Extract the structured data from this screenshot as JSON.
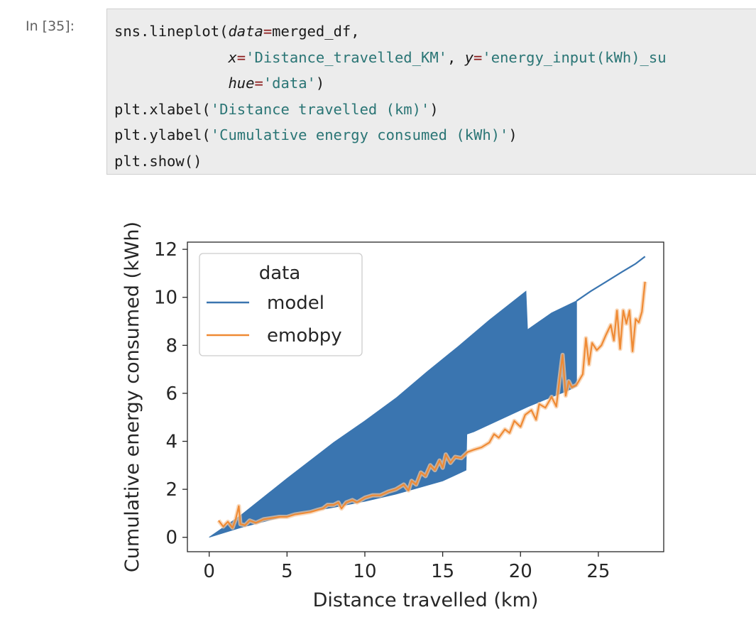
{
  "cell": {
    "prompt": "In [35]:",
    "code_lines": [
      [
        {
          "t": "sns.lineplot(",
          "c": "p"
        },
        {
          "t": "data",
          "c": "kw"
        },
        {
          "t": "=",
          "c": "op"
        },
        {
          "t": "merged_df,",
          "c": "p"
        }
      ],
      [
        {
          "t": "             ",
          "c": "p"
        },
        {
          "t": "x",
          "c": "kw"
        },
        {
          "t": "=",
          "c": "op"
        },
        {
          "t": "'Distance_travelled_KM'",
          "c": "str"
        },
        {
          "t": ", ",
          "c": "p"
        },
        {
          "t": "y",
          "c": "kw"
        },
        {
          "t": "=",
          "c": "op"
        },
        {
          "t": "'energy_input(kWh)_su",
          "c": "str"
        }
      ],
      [
        {
          "t": "             ",
          "c": "p"
        },
        {
          "t": "hue",
          "c": "kw"
        },
        {
          "t": "=",
          "c": "op"
        },
        {
          "t": "'data'",
          "c": "str"
        },
        {
          "t": ")",
          "c": "p"
        }
      ],
      [
        {
          "t": "plt.xlabel(",
          "c": "p"
        },
        {
          "t": "'Distance travelled (km)'",
          "c": "str"
        },
        {
          "t": ")",
          "c": "p"
        }
      ],
      [
        {
          "t": "plt.ylabel(",
          "c": "p"
        },
        {
          "t": "'Cumulative energy consumed (kWh)'",
          "c": "str"
        },
        {
          "t": ")",
          "c": "p"
        }
      ],
      [
        {
          "t": "plt.show()",
          "c": "p"
        }
      ]
    ]
  },
  "chart_data": {
    "type": "line",
    "title": "",
    "xlabel": "Distance travelled (km)",
    "ylabel": "Cumulative energy consumed (kWh)",
    "xlim": [
      -1.4,
      29.2
    ],
    "ylim": [
      -0.6,
      12.3
    ],
    "xticks": [
      0,
      5,
      10,
      15,
      20,
      25
    ],
    "yticks": [
      0,
      2,
      4,
      6,
      8,
      10,
      12
    ],
    "legend": {
      "title": "data",
      "position": "top-left"
    },
    "grid": false,
    "series": [
      {
        "name": "model",
        "color": "#3a75b0",
        "band": {
          "upper": [
            [
              0,
              0.0
            ],
            [
              2,
              0.9
            ],
            [
              5,
              2.45
            ],
            [
              8,
              3.95
            ],
            [
              10,
              4.85
            ],
            [
              12,
              5.8
            ],
            [
              14,
              6.9
            ],
            [
              16,
              7.95
            ],
            [
              18,
              9.05
            ],
            [
              20.35,
              10.25
            ],
            [
              20.45,
              8.65
            ],
            [
              22,
              9.35
            ],
            [
              23.6,
              9.85
            ]
          ],
          "lower": [
            [
              23.6,
              6.3
            ],
            [
              23,
              6.1
            ],
            [
              22,
              5.85
            ],
            [
              20.5,
              5.45
            ],
            [
              18.5,
              4.85
            ],
            [
              17,
              4.4
            ],
            [
              16.55,
              4.3
            ],
            [
              16.5,
              2.8
            ],
            [
              15,
              2.35
            ],
            [
              12,
              1.8
            ],
            [
              10,
              1.5
            ],
            [
              8,
              1.25
            ],
            [
              5,
              0.9
            ],
            [
              2,
              0.4
            ],
            [
              0,
              0.0
            ]
          ]
        },
        "line": [
          [
            23.6,
            9.85
          ],
          [
            24.5,
            10.25
          ],
          [
            25.5,
            10.65
          ],
          [
            26.5,
            11.05
          ],
          [
            27.4,
            11.4
          ],
          [
            28.0,
            11.7
          ]
        ]
      },
      {
        "name": "emobpy",
        "color": "#ef8a34",
        "values": [
          [
            0.6,
            0.7
          ],
          [
            0.9,
            0.45
          ],
          [
            1.2,
            0.65
          ],
          [
            1.5,
            0.4
          ],
          [
            1.7,
            0.75
          ],
          [
            1.9,
            1.3
          ],
          [
            2.0,
            0.55
          ],
          [
            2.3,
            0.5
          ],
          [
            2.6,
            0.7
          ],
          [
            3.0,
            0.6
          ],
          [
            3.5,
            0.75
          ],
          [
            4,
            0.8
          ],
          [
            4.5,
            0.85
          ],
          [
            5,
            0.85
          ],
          [
            5.5,
            0.95
          ],
          [
            6,
            1.0
          ],
          [
            6.5,
            1.05
          ],
          [
            7,
            1.15
          ],
          [
            7.3,
            1.2
          ],
          [
            7.6,
            1.35
          ],
          [
            8,
            1.35
          ],
          [
            8.3,
            1.45
          ],
          [
            8.5,
            1.2
          ],
          [
            8.8,
            1.45
          ],
          [
            9.2,
            1.55
          ],
          [
            9.5,
            1.45
          ],
          [
            10,
            1.65
          ],
          [
            10.5,
            1.75
          ],
          [
            11,
            1.75
          ],
          [
            11.5,
            1.9
          ],
          [
            12,
            2.0
          ],
          [
            12.5,
            2.2
          ],
          [
            12.8,
            1.95
          ],
          [
            13,
            2.35
          ],
          [
            13.3,
            2.2
          ],
          [
            13.6,
            2.7
          ],
          [
            13.9,
            2.55
          ],
          [
            14.2,
            3.0
          ],
          [
            14.5,
            2.8
          ],
          [
            14.8,
            3.2
          ],
          [
            15,
            2.9
          ],
          [
            15.2,
            3.45
          ],
          [
            15.5,
            3.1
          ],
          [
            15.8,
            3.35
          ],
          [
            16.2,
            3.3
          ],
          [
            16.6,
            3.55
          ],
          [
            17,
            3.65
          ],
          [
            17.5,
            3.75
          ],
          [
            18,
            3.95
          ],
          [
            18.3,
            4.3
          ],
          [
            18.6,
            4.15
          ],
          [
            19,
            4.5
          ],
          [
            19.3,
            4.35
          ],
          [
            19.6,
            4.85
          ],
          [
            20,
            4.6
          ],
          [
            20.3,
            5.1
          ],
          [
            20.7,
            5.3
          ],
          [
            21,
            4.9
          ],
          [
            21.2,
            5.55
          ],
          [
            21.6,
            5.4
          ],
          [
            22,
            5.85
          ],
          [
            22.3,
            5.45
          ],
          [
            22.5,
            6.55
          ],
          [
            22.7,
            7.6
          ],
          [
            22.9,
            5.9
          ],
          [
            23.1,
            6.5
          ],
          [
            23.3,
            6.25
          ],
          [
            23.6,
            6.35
          ],
          [
            24,
            6.8
          ],
          [
            24.2,
            8.3
          ],
          [
            24.4,
            7.2
          ],
          [
            24.6,
            8.1
          ],
          [
            24.9,
            7.8
          ],
          [
            25.2,
            8.0
          ],
          [
            25.5,
            8.45
          ],
          [
            25.8,
            8.85
          ],
          [
            26.0,
            8.2
          ],
          [
            26.2,
            9.45
          ],
          [
            26.4,
            7.85
          ],
          [
            26.6,
            9.45
          ],
          [
            26.8,
            8.9
          ],
          [
            27.0,
            9.45
          ],
          [
            27.2,
            7.75
          ],
          [
            27.4,
            9.1
          ],
          [
            27.6,
            8.95
          ],
          [
            27.8,
            9.4
          ],
          [
            28.0,
            10.65
          ]
        ]
      }
    ]
  }
}
